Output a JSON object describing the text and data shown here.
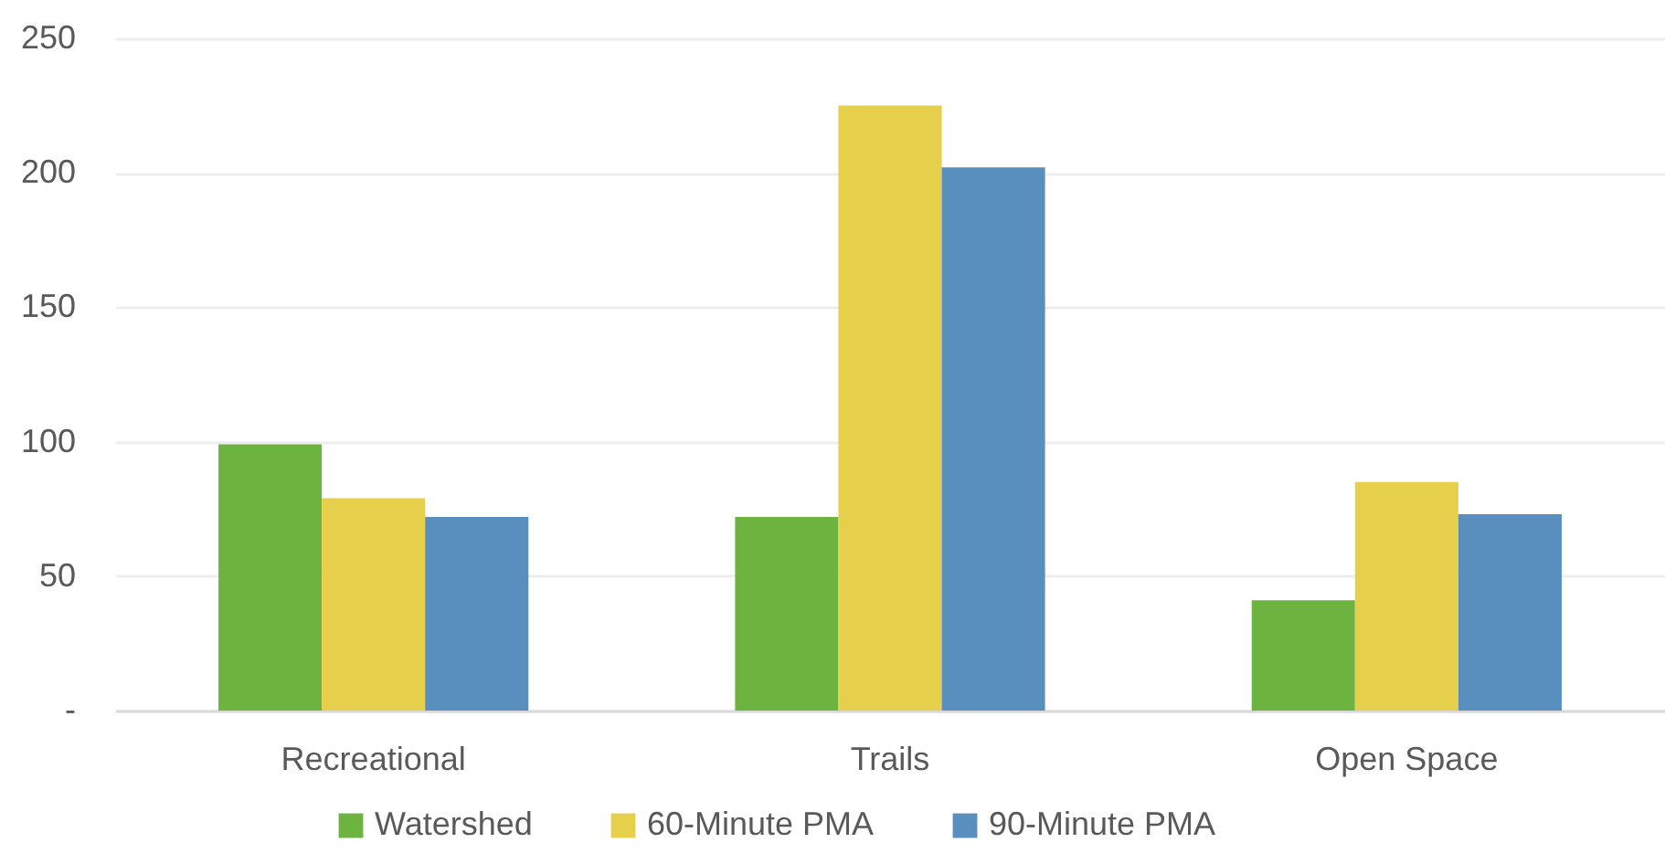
{
  "chart_data": {
    "type": "bar",
    "categories": [
      "Recreational",
      "Trails",
      "Open Space"
    ],
    "series": [
      {
        "name": "Watershed",
        "color": "#6db33f",
        "values": [
          99,
          72,
          41
        ]
      },
      {
        "name": "60-Minute PMA",
        "color": "#e6d04b",
        "values": [
          79,
          225,
          85
        ]
      },
      {
        "name": "90-Minute PMA",
        "color": "#588fbe",
        "values": [
          72,
          202,
          73
        ]
      }
    ],
    "ylim": [
      0,
      250
    ],
    "yticks": [
      {
        "value": 0,
        "label": "-"
      },
      50,
      100,
      150,
      200,
      250
    ],
    "grid": "y",
    "legend": "bottom"
  }
}
